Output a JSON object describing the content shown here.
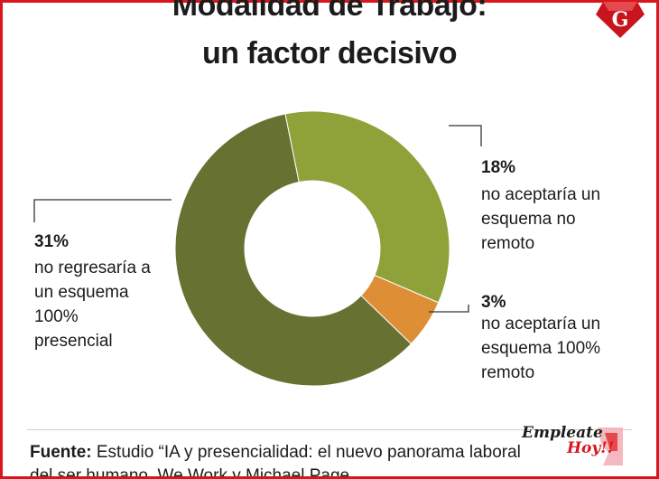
{
  "header": {
    "title_line1": "Modalidad de Trabajo:",
    "title_line2": "un factor decisivo",
    "logo_letter": "G"
  },
  "chart_data": {
    "type": "pie",
    "donut": true,
    "slices": [
      {
        "percent_label": "18%",
        "value": 18,
        "description": [
          "no aceptaría un",
          "esquema no",
          "remoto"
        ],
        "color": "#8fa23a"
      },
      {
        "percent_label": "3%",
        "value": 3,
        "description": [
          "no aceptaría un",
          "esquema 100%",
          "remoto"
        ],
        "color": "#de8f35"
      },
      {
        "percent_label": "31%",
        "value": 31,
        "description": [
          "no regresaría a",
          "un esquema",
          "100%",
          "presencial"
        ],
        "color": "#677232"
      }
    ]
  },
  "footer": {
    "source_label": "Fuente:",
    "source_text": " Estudio “IA y presencialidad: el nuevo panorama laboral",
    "source_text_line2": "del ser humano. We Work y Michael Page",
    "brand_line1": "Empleate",
    "brand_line2": "Hoy!!"
  }
}
